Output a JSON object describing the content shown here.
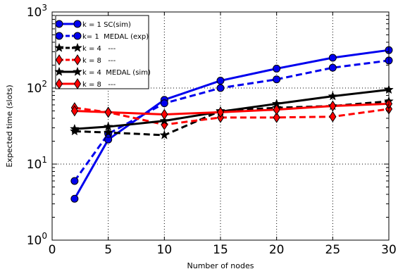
{
  "chart_data": {
    "type": "line",
    "xlabel": "Number of nodes",
    "ylabel": "Expected time (slots)",
    "xlim": [
      0,
      30
    ],
    "ylim": [
      1,
      1000
    ],
    "yscale": "log",
    "grid": true,
    "legend_position": "top-left",
    "x_ticks": [
      "0",
      "5",
      "10",
      "15",
      "20",
      "25",
      "30"
    ],
    "y_ticks": [
      {
        "base": "10",
        "exp": "0"
      },
      {
        "base": "10",
        "exp": "1"
      },
      {
        "base": "10",
        "exp": "2"
      },
      {
        "base": "10",
        "exp": "3"
      }
    ],
    "x": [
      2,
      5,
      10,
      15,
      20,
      25,
      30
    ],
    "series": [
      {
        "name": "k = 1 SC(sim)",
        "values": [
          3.5,
          21,
          70,
          125,
          180,
          250,
          315
        ],
        "color": "#0000ee",
        "dash": "solid",
        "marker": "circle"
      },
      {
        "name": "k= 1  MEDAL (exp)",
        "values": [
          6,
          25,
          63,
          100,
          130,
          185,
          230
        ],
        "color": "#0000ee",
        "dash": "dashed",
        "marker": "circle"
      },
      {
        "name": "k = 4   ---",
        "values": [
          27,
          26,
          24,
          50,
          55,
          58,
          67
        ],
        "color": "#000000",
        "dash": "dashed",
        "marker": "star"
      },
      {
        "name": "k = 8   ---",
        "values": [
          55,
          48,
          33,
          41,
          41,
          42,
          53
        ],
        "color": "#ff0000",
        "dash": "dashed",
        "marker": "diamond"
      },
      {
        "name": "k = 4  MEDAL (sim)",
        "values": [
          29,
          31,
          37,
          49,
          62,
          78,
          95
        ],
        "color": "#000000",
        "dash": "solid",
        "marker": "star"
      },
      {
        "name": "k = 8   ---",
        "values": [
          50,
          48,
          45,
          48,
          52,
          58,
          62
        ],
        "color": "#ff0000",
        "dash": "solid",
        "marker": "diamond"
      }
    ]
  }
}
